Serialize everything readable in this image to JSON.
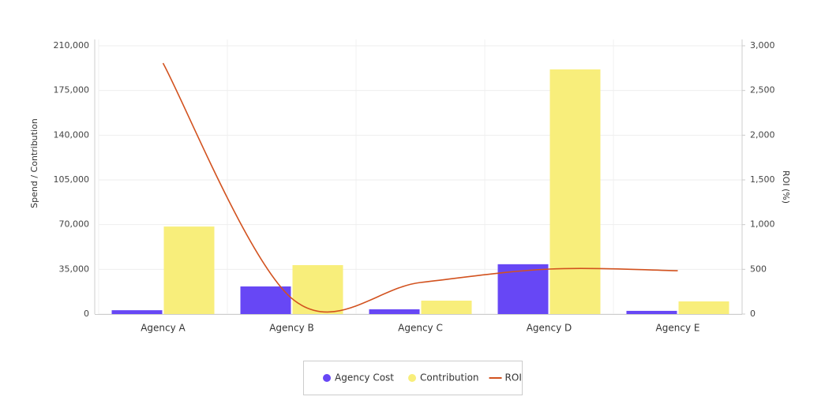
{
  "chart_data": {
    "type": "bar-line",
    "categories": [
      "Agency A",
      "Agency B",
      "Agency C",
      "Agency D",
      "Agency E"
    ],
    "series": [
      {
        "name": "Agency Cost",
        "type": "bar",
        "color": "#6747f5",
        "values": [
          3000,
          21600,
          3700,
          39000,
          2500
        ]
      },
      {
        "name": "Contribution",
        "type": "bar",
        "color": "#f8ee7b",
        "values": [
          68500,
          38300,
          10500,
          191500,
          9900
        ]
      },
      {
        "name": "ROI",
        "type": "line",
        "axis": "y2",
        "color": "#d2521f",
        "values": [
          2806,
          176,
          353,
          503,
          485
        ]
      }
    ],
    "ylabel": "Spend / Contribution",
    "y2label": "ROI (%)",
    "ylim": [
      0,
      210000
    ],
    "yticks": [
      0,
      {
        "value": 35000,
        "label": "35,000"
      },
      {
        "value": 70000,
        "label": "70,000"
      },
      {
        "value": 105000,
        "label": "105,000"
      },
      {
        "value": 140000,
        "label": "140,000"
      },
      {
        "value": 175000,
        "label": "175,000"
      },
      {
        "value": 210000,
        "label": "210,000"
      }
    ],
    "y2lim": [
      0,
      3000
    ],
    "y2ticks": [
      0,
      500,
      {
        "value": 1000,
        "label": "1,000"
      },
      {
        "value": 1500,
        "label": "1,500"
      },
      {
        "value": 2000,
        "label": "2,000"
      },
      {
        "value": 2500,
        "label": "2,500"
      },
      {
        "value": 3000,
        "label": "3,000"
      }
    ],
    "grid": true,
    "legend": "bottom"
  }
}
